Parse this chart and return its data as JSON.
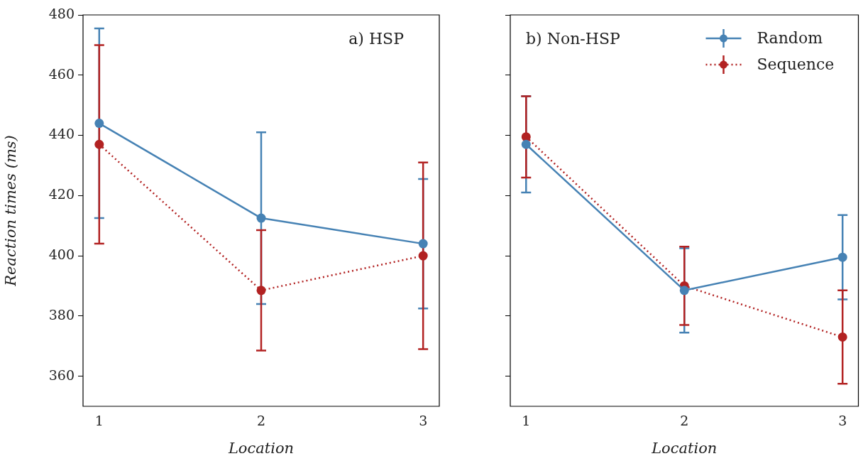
{
  "chart_data": [
    {
      "type": "line",
      "annotations": [
        "a) HSP"
      ],
      "xlabel": "Location",
      "ylabel": "Reaction times (ms)",
      "x": [
        1,
        2,
        3
      ],
      "xlim": [
        0.9,
        3.1
      ],
      "xticks": [
        1,
        2,
        3
      ],
      "ylim": [
        350,
        480
      ],
      "yticks": [
        360,
        380,
        400,
        420,
        440,
        460,
        480
      ],
      "marker": "circle",
      "grid": false,
      "legend": false,
      "series": [
        {
          "color": "#4682b4",
          "line_style": "solid",
          "values": [
            444,
            412.5,
            404
          ],
          "errors": [
            31.5,
            28.5,
            21.5
          ]
        },
        {
          "color": "#b22222",
          "line_style": "dotted",
          "values": [
            437,
            388.5,
            400
          ],
          "errors": [
            33,
            20,
            31
          ]
        }
      ]
    },
    {
      "type": "line",
      "annotations": [
        "b) Non-HSP"
      ],
      "xlabel": "Location",
      "x": [
        1,
        2,
        3
      ],
      "xlim": [
        0.9,
        3.1
      ],
      "xticks": [
        1,
        2,
        3
      ],
      "ylim": [
        350,
        480
      ],
      "yticks": [
        360,
        380,
        400,
        420,
        440,
        460,
        480
      ],
      "tick_labels": "x",
      "marker": "circle",
      "grid": false,
      "legend": "top right",
      "series": [
        {
          "name": "Random",
          "color": "#4682b4",
          "line_style": "solid",
          "values": [
            437,
            388.5,
            399.5
          ],
          "errors": [
            16,
            14,
            14
          ]
        },
        {
          "name": "Sequence",
          "color": "#b22222",
          "line_style": "dotted",
          "values": [
            439.5,
            390,
            373
          ],
          "errors": [
            13.5,
            13,
            15.5
          ]
        }
      ]
    }
  ]
}
